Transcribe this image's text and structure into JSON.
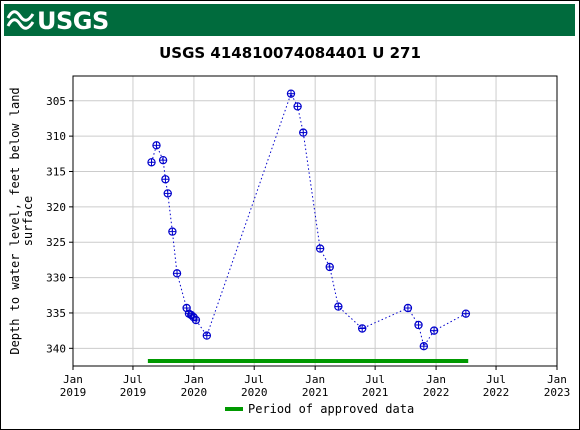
{
  "header": {
    "logo_text": "USGS",
    "brand_color": "#006b3d"
  },
  "chart_data": {
    "type": "scatter",
    "title": "USGS 414810074084401 U 271",
    "ylabel_lines": [
      "Depth to water level, feet below land",
      "surface"
    ],
    "y_inverted": true,
    "ylim": [
      342.5,
      301.5
    ],
    "y_ticks": [
      305,
      310,
      315,
      320,
      325,
      330,
      335,
      340
    ],
    "x_ticks": [
      {
        "date": "2019-01-01",
        "label1": "Jan",
        "label2": "2019"
      },
      {
        "date": "2019-07-01",
        "label1": "Jul",
        "label2": "2019"
      },
      {
        "date": "2020-01-01",
        "label1": "Jan",
        "label2": "2020"
      },
      {
        "date": "2020-07-01",
        "label1": "Jul",
        "label2": "2020"
      },
      {
        "date": "2021-01-01",
        "label1": "Jan",
        "label2": "2021"
      },
      {
        "date": "2021-07-01",
        "label1": "Jul",
        "label2": "2021"
      },
      {
        "date": "2022-01-01",
        "label1": "Jan",
        "label2": "2022"
      },
      {
        "date": "2022-07-01",
        "label1": "Jul",
        "label2": "2022"
      },
      {
        "date": "2023-01-01",
        "label1": "Jan",
        "label2": "2023"
      }
    ],
    "grid": true,
    "series": [
      {
        "point_color": "#0000cc",
        "line_style": "dotted",
        "points": [
          {
            "x": "2019-08-26",
            "y": 313.7
          },
          {
            "x": "2019-09-10",
            "y": 311.3
          },
          {
            "x": "2019-09-30",
            "y": 313.4
          },
          {
            "x": "2019-10-07",
            "y": 316.1
          },
          {
            "x": "2019-10-14",
            "y": 318.1
          },
          {
            "x": "2019-10-28",
            "y": 323.5
          },
          {
            "x": "2019-11-11",
            "y": 329.4
          },
          {
            "x": "2019-12-10",
            "y": 334.3
          },
          {
            "x": "2019-12-17",
            "y": 335.1
          },
          {
            "x": "2019-12-24",
            "y": 335.3
          },
          {
            "x": "2019-12-31",
            "y": 335.6
          },
          {
            "x": "2020-01-07",
            "y": 336.0
          },
          {
            "x": "2020-02-09",
            "y": 338.2
          },
          {
            "x": "2020-10-20",
            "y": 304.0
          },
          {
            "x": "2020-11-09",
            "y": 305.8
          },
          {
            "x": "2020-11-26",
            "y": 309.5
          },
          {
            "x": "2021-01-16",
            "y": 325.9
          },
          {
            "x": "2021-02-14",
            "y": 328.5
          },
          {
            "x": "2021-03-12",
            "y": 334.1
          },
          {
            "x": "2021-05-23",
            "y": 337.2
          },
          {
            "x": "2021-10-08",
            "y": 334.3
          },
          {
            "x": "2021-11-09",
            "y": 336.7
          },
          {
            "x": "2021-11-25",
            "y": 339.7
          },
          {
            "x": "2021-12-26",
            "y": 337.5
          },
          {
            "x": "2022-04-01",
            "y": 335.1
          }
        ]
      }
    ],
    "approved_period": {
      "start": "2019-08-15",
      "end": "2022-04-08",
      "color": "#009900",
      "y": 341.8
    },
    "legend": {
      "label": "Period of approved data",
      "placement": "bottom-center"
    }
  }
}
